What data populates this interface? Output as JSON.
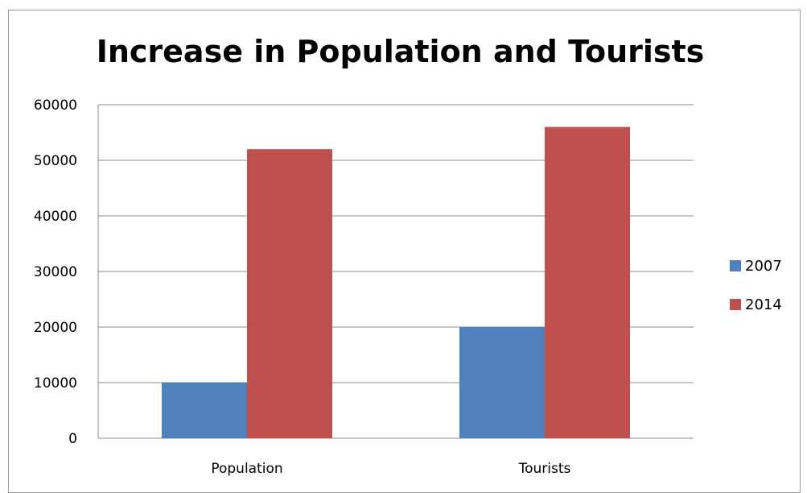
{
  "chart_data": {
    "type": "bar",
    "title": "Increase in Population and Tourists",
    "categories": [
      "Population",
      "Tourists"
    ],
    "series": [
      {
        "name": "2007",
        "values": [
          10000,
          20000
        ],
        "color": "#4f81bd"
      },
      {
        "name": "2014",
        "values": [
          52000,
          56000
        ],
        "color": "#c0504d"
      }
    ],
    "ylim": [
      0,
      60000
    ],
    "yticks": [
      "0",
      "10000",
      "20000",
      "30000",
      "40000",
      "50000",
      "60000"
    ],
    "grid": true,
    "legend_position": "right"
  }
}
